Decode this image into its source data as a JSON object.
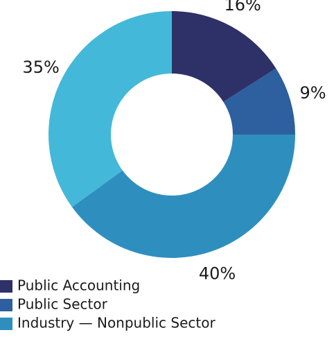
{
  "chart_data": {
    "type": "donut",
    "categories": [
      "Public Accounting",
      "Public Sector",
      "Industry — Nonpublic Sector",
      null
    ],
    "values": [
      16,
      9,
      40,
      35
    ],
    "value_labels": [
      "16%",
      "9%",
      "40%",
      "35%"
    ],
    "colors": [
      "#2e3168",
      "#2e5f9e",
      "#2e8fbf",
      "#44b8d8"
    ]
  }
}
